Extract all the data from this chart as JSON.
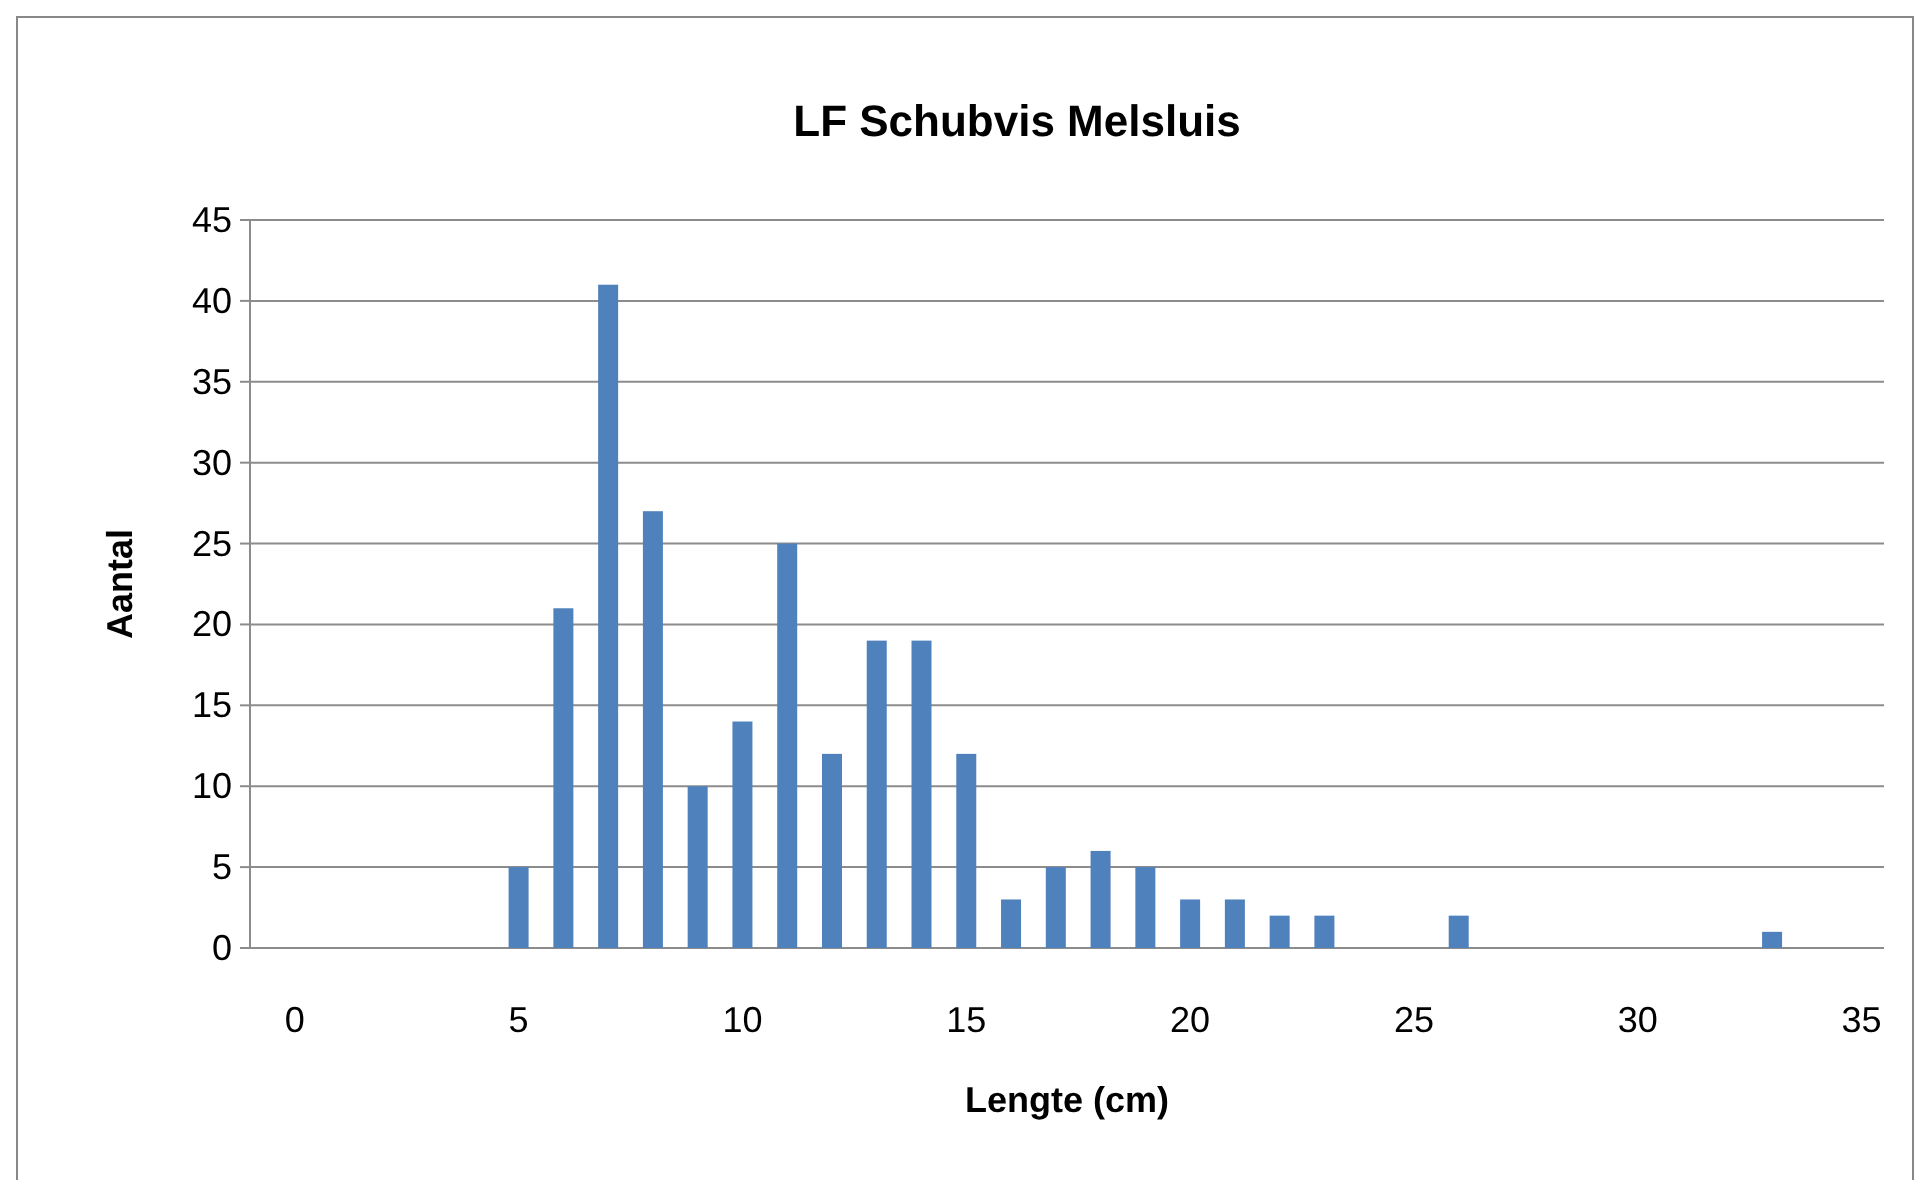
{
  "chart_data": {
    "type": "bar",
    "title": "LF Schubvis Melsluis",
    "xlabel": "Lengte (cm)",
    "ylabel": "Aantal",
    "x": [
      5,
      6,
      7,
      8,
      9,
      10,
      11,
      12,
      13,
      14,
      15,
      16,
      17,
      18,
      19,
      20,
      21,
      22,
      23,
      26,
      33
    ],
    "values": [
      5,
      21,
      41,
      27,
      10,
      14,
      25,
      12,
      19,
      19,
      12,
      3,
      5,
      6,
      5,
      3,
      3,
      2,
      2,
      2,
      1
    ],
    "color": "#4f81bd",
    "xlim": [
      -1,
      35.5
    ],
    "xticks": [
      0,
      5,
      10,
      15,
      20,
      25,
      30,
      35
    ],
    "ylim": [
      0,
      45
    ],
    "yticks": [
      0,
      5,
      10,
      15,
      20,
      25,
      30,
      35,
      40,
      45
    ],
    "grid": "y"
  }
}
